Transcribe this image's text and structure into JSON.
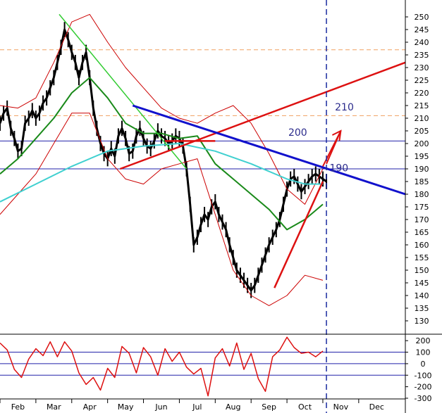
{
  "colors": {
    "price": "#000000",
    "bollinger": "#cc0000",
    "ma_green": "#1a8a1a",
    "ma_cyan": "#40d0d0",
    "trend_green": "#33cc33",
    "trend_red": "#dd1111",
    "trend_blue": "#1111cc",
    "hline_blue": "#2222aa",
    "hline_orange": "#f0a060",
    "future_marker": "#1a2aa0",
    "oscillator": "#dd1111"
  },
  "chart_data": {
    "type": "line",
    "x_labels": [
      "Feb",
      "Mar",
      "Apr",
      "May",
      "Jun",
      "Jul",
      "Aug",
      "Sep",
      "Oct",
      "Nov",
      "Dec"
    ],
    "x_range": [
      0,
      11.3
    ],
    "ylim": [
      125,
      255
    ],
    "y_ticks": [
      130,
      135,
      140,
      145,
      150,
      155,
      160,
      165,
      170,
      175,
      180,
      185,
      190,
      195,
      200,
      205,
      210,
      215,
      220,
      225,
      230,
      235,
      240,
      245,
      250
    ],
    "grid": false,
    "annotations": [
      "200",
      "210",
      "190"
    ],
    "annotation_positions": [
      {
        "text_index": 0,
        "x": 8.3,
        "y": 203
      },
      {
        "text_index": 1,
        "x": 9.6,
        "y": 213
      },
      {
        "text_index": 2,
        "x": 9.45,
        "y": 189
      }
    ],
    "series": [
      {
        "role": "price",
        "x": [
          0.0,
          0.1,
          0.2,
          0.3,
          0.4,
          0.5,
          0.6,
          0.7,
          0.8,
          0.9,
          1.0,
          1.1,
          1.2,
          1.3,
          1.4,
          1.5,
          1.6,
          1.7,
          1.8,
          1.9,
          2.0,
          2.1,
          2.2,
          2.3,
          2.4,
          2.5,
          2.6,
          2.7,
          2.8,
          2.9,
          3.0,
          3.1,
          3.2,
          3.3,
          3.4,
          3.5,
          3.6,
          3.7,
          3.8,
          3.9,
          4.0,
          4.1,
          4.2,
          4.3,
          4.4,
          4.5,
          4.6,
          4.7,
          4.8,
          4.9,
          5.0,
          5.1,
          5.2,
          5.3,
          5.4,
          5.5,
          5.6,
          5.7,
          5.8,
          5.9,
          6.0,
          6.1,
          6.2,
          6.3,
          6.4,
          6.5,
          6.6,
          6.7,
          6.8,
          6.9,
          7.0,
          7.1,
          7.2,
          7.3,
          7.4,
          7.5,
          7.6,
          7.7,
          7.8,
          7.9,
          8.0,
          8.1,
          8.2,
          8.3,
          8.4,
          8.5,
          8.6,
          8.7,
          8.8,
          8.9,
          9.0,
          9.1
        ],
        "values": [
          208,
          212,
          214,
          206,
          202,
          197,
          198,
          208,
          210,
          213,
          210,
          212,
          216,
          218,
          222,
          226,
          232,
          238,
          245,
          241,
          236,
          232,
          226,
          232,
          236,
          226,
          214,
          206,
          200,
          196,
          194,
          198,
          195,
          203,
          206,
          202,
          196,
          197,
          203,
          206,
          202,
          199,
          198,
          201,
          205,
          203,
          202,
          200,
          201,
          203,
          202,
          199,
          190,
          176,
          160,
          163,
          168,
          172,
          170,
          175,
          177,
          172,
          169,
          166,
          160,
          155,
          150,
          148,
          146,
          144,
          142,
          144,
          148,
          152,
          156,
          160,
          163,
          166,
          170,
          176,
          182,
          186,
          187,
          184,
          181,
          183,
          185,
          187,
          188,
          187,
          186,
          185
        ]
      },
      {
        "role": "bollinger_upper",
        "x": [
          0.0,
          0.5,
          1.0,
          1.5,
          2.0,
          2.5,
          3.0,
          3.5,
          4.0,
          4.5,
          5.0,
          5.5,
          6.0,
          6.5,
          7.0,
          7.5,
          8.0,
          8.5,
          9.0
        ],
        "values": [
          215,
          214,
          218,
          232,
          248,
          251,
          240,
          230,
          222,
          214,
          210,
          208,
          212,
          215,
          208,
          196,
          182,
          176,
          190
        ]
      },
      {
        "role": "bollinger_lower",
        "x": [
          0.0,
          0.5,
          1.0,
          1.5,
          2.0,
          2.5,
          3.0,
          3.5,
          4.0,
          4.5,
          5.0,
          5.5,
          6.0,
          6.5,
          7.0,
          7.5,
          8.0,
          8.5,
          9.0
        ],
        "values": [
          172,
          180,
          188,
          200,
          212,
          212,
          194,
          186,
          184,
          190,
          192,
          194,
          172,
          150,
          140,
          136,
          140,
          148,
          146
        ]
      },
      {
        "role": "ma_green",
        "x": [
          0.0,
          0.5,
          1.0,
          1.5,
          2.0,
          2.5,
          3.0,
          3.5,
          4.0,
          4.5,
          5.0,
          5.5,
          6.0,
          6.5,
          7.0,
          7.5,
          8.0,
          8.5,
          9.0
        ],
        "values": [
          188,
          194,
          202,
          210,
          220,
          226,
          218,
          208,
          204,
          204,
          202,
          203,
          192,
          186,
          180,
          174,
          166,
          170,
          176
        ]
      },
      {
        "role": "ma_cyan",
        "x": [
          0.0,
          1.0,
          2.0,
          3.0,
          4.0,
          5.0,
          6.0,
          7.0,
          8.0,
          8.5,
          9.0
        ],
        "values": [
          177,
          184,
          191,
          197,
          199,
          200,
          197,
          192,
          186,
          184,
          184
        ]
      }
    ],
    "trendlines": [
      {
        "role": "trend_green",
        "x": [
          1.65,
          5.2
        ],
        "values": [
          251,
          190
        ]
      },
      {
        "role": "trend_red",
        "x": [
          3.35,
          11.3
        ],
        "values": [
          190,
          232
        ]
      },
      {
        "role": "trend_blue",
        "x": [
          3.7,
          11.3
        ],
        "values": [
          215,
          180
        ]
      },
      {
        "role": "trend_red",
        "x": [
          4.6,
          6.0
        ],
        "values": [
          201,
          201
        ]
      },
      {
        "role": "trend_red",
        "x": [
          7.65,
          9.0
        ],
        "values": [
          143,
          185
        ]
      }
    ],
    "horizontal_lines": [
      {
        "role": "hline_blue",
        "y": 201
      },
      {
        "role": "hline_blue",
        "y": 190
      },
      {
        "role": "hline_orange",
        "y": 237
      },
      {
        "role": "hline_orange",
        "y": 211
      }
    ],
    "future_marker_x": 9.1,
    "projection_arrows": [
      {
        "x": [
          9.0,
          9.5
        ],
        "values": [
          191,
          205
        ]
      },
      {
        "x": [
          9.1,
          9.5
        ],
        "values": [
          192,
          205
        ]
      }
    ],
    "oscillator": {
      "type": "line",
      "ylim": [
        -300,
        250
      ],
      "y_ticks": [
        -300,
        -200,
        -100,
        0,
        100,
        200
      ],
      "reference_lines": [
        100,
        -100,
        0
      ],
      "x": [
        0.0,
        0.2,
        0.4,
        0.6,
        0.8,
        1.0,
        1.2,
        1.4,
        1.6,
        1.8,
        2.0,
        2.2,
        2.4,
        2.6,
        2.8,
        3.0,
        3.2,
        3.4,
        3.6,
        3.8,
        4.0,
        4.2,
        4.4,
        4.6,
        4.8,
        5.0,
        5.2,
        5.4,
        5.6,
        5.8,
        6.0,
        6.2,
        6.4,
        6.6,
        6.8,
        7.0,
        7.2,
        7.4,
        7.6,
        7.8,
        8.0,
        8.2,
        8.4,
        8.6,
        8.8,
        9.0
      ],
      "values": [
        180,
        120,
        -50,
        -120,
        40,
        130,
        70,
        190,
        60,
        190,
        110,
        -80,
        -180,
        -120,
        -230,
        -40,
        -120,
        150,
        90,
        -80,
        140,
        60,
        -100,
        130,
        20,
        100,
        -30,
        -90,
        -40,
        -280,
        50,
        130,
        -20,
        180,
        -50,
        90,
        -130,
        -240,
        60,
        120,
        230,
        140,
        90,
        100,
        60,
        110
      ]
    }
  }
}
